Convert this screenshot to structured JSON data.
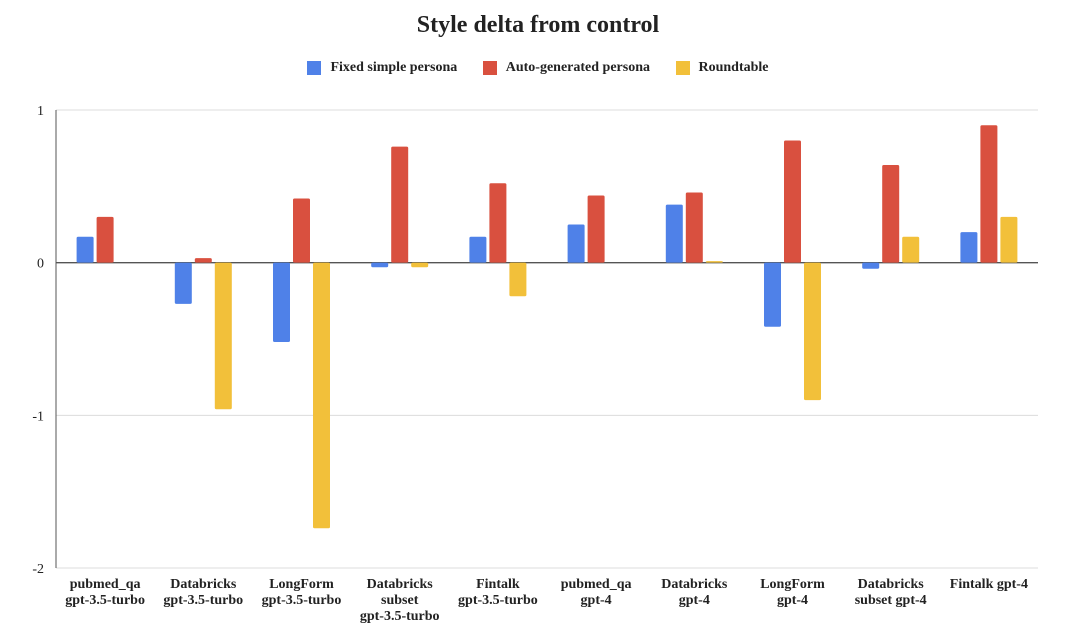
{
  "chart_data": {
    "type": "bar",
    "title": "Style delta from control",
    "xlabel": "",
    "ylabel": "",
    "ylim": [
      -2,
      1
    ],
    "yticks": [
      "1",
      "0",
      "-1",
      "-2"
    ],
    "legend_position": "top",
    "categories": [
      [
        "pubmed_qa",
        "gpt-3.5-turbo"
      ],
      [
        "Databricks",
        "gpt-3.5-turbo"
      ],
      [
        "LongForm",
        "gpt-3.5-turbo"
      ],
      [
        "Databricks",
        "subset",
        "gpt-3.5-turbo"
      ],
      [
        "Fintalk",
        "gpt-3.5-turbo"
      ],
      [
        "pubmed_qa",
        "gpt-4"
      ],
      [
        "Databricks",
        "gpt-4"
      ],
      [
        "LongForm",
        "gpt-4"
      ],
      [
        "Databricks",
        "subset gpt-4"
      ],
      [
        "Fintalk gpt-4"
      ]
    ],
    "series": [
      {
        "name": "Fixed simple persona",
        "color": "#4f81e8",
        "values": [
          0.17,
          -0.27,
          -0.52,
          -0.03,
          0.17,
          0.25,
          0.38,
          -0.42,
          -0.04,
          0.2
        ]
      },
      {
        "name": "Auto-generated persona",
        "color": "#d9503f",
        "values": [
          0.3,
          0.03,
          0.42,
          0.76,
          0.52,
          0.44,
          0.46,
          0.8,
          0.64,
          0.9
        ]
      },
      {
        "name": "Roundtable",
        "color": "#f2c03a",
        "values": [
          0.0,
          -0.96,
          -1.74,
          -0.03,
          -0.22,
          0.0,
          0.01,
          -0.9,
          0.17,
          0.3
        ]
      }
    ]
  }
}
